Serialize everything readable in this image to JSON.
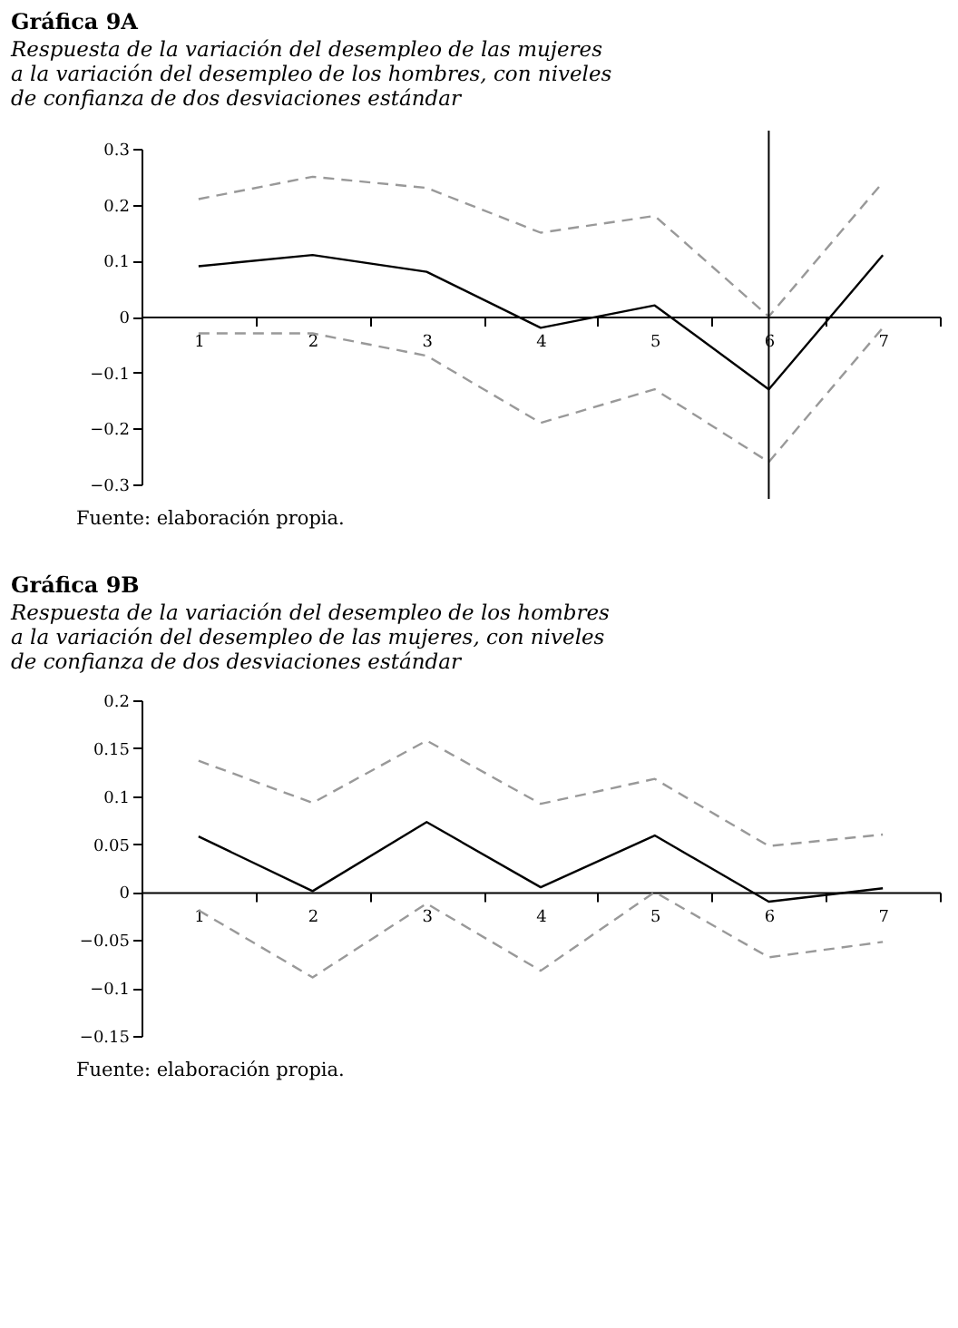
{
  "chart_data": [
    {
      "type": "line",
      "title": "Gráfica 9A",
      "subtitle": "Respuesta de la variación del desempleo de las mujeres\na la variación del desempleo de los hombres, con niveles\nde confianza de dos desviaciones estándar",
      "categories": [
        "1",
        "2",
        "3",
        "4",
        "5",
        "6",
        "7"
      ],
      "series": [
        {
          "color": "#999999",
          "line_style": "dashed",
          "values": [
            0.21,
            0.25,
            0.23,
            0.15,
            0.18,
            0.0,
            0.24
          ]
        },
        {
          "color": "#000000",
          "line_style": "solid",
          "values": [
            0.09,
            0.11,
            0.08,
            -0.02,
            0.02,
            -0.13,
            0.11
          ]
        },
        {
          "color": "#999999",
          "line_style": "dashed",
          "values": [
            -0.03,
            -0.03,
            -0.07,
            -0.19,
            -0.13,
            -0.26,
            -0.02
          ]
        }
      ],
      "ylim": [
        -0.3,
        0.3
      ],
      "yticks": [
        -0.3,
        -0.2,
        -0.1,
        0,
        0.1,
        0.2,
        0.3
      ],
      "ref_lines": [
        {
          "axis": "x",
          "value": "6",
          "color": "#000000"
        }
      ],
      "annotations": [
        "Fuente: elaboración propia."
      ]
    },
    {
      "type": "line",
      "title": "Gráfica 9B",
      "subtitle": "Respuesta de la variación del desempleo de los hombres\na la variación del desempleo de las mujeres, con niveles\nde confianza de dos desviaciones estándar",
      "categories": [
        "1",
        "2",
        "3",
        "4",
        "5",
        "6",
        "7"
      ],
      "series": [
        {
          "color": "#999999",
          "line_style": "dashed",
          "values": [
            0.137,
            0.093,
            0.158,
            0.092,
            0.118,
            0.048,
            0.06
          ]
        },
        {
          "color": "#000000",
          "line_style": "solid",
          "values": [
            0.058,
            0.001,
            0.073,
            0.005,
            0.059,
            -0.01,
            0.004
          ]
        },
        {
          "color": "#999999",
          "line_style": "dashed",
          "values": [
            -0.019,
            -0.089,
            -0.012,
            -0.082,
            0.0,
            -0.068,
            -0.052
          ]
        }
      ],
      "ylim": [
        -0.15,
        0.2
      ],
      "yticks": [
        -0.15,
        -0.1,
        -0.05,
        0,
        0.05,
        0.1,
        0.15,
        0.2
      ],
      "annotations": [
        "Fuente: elaboración propia."
      ]
    }
  ]
}
